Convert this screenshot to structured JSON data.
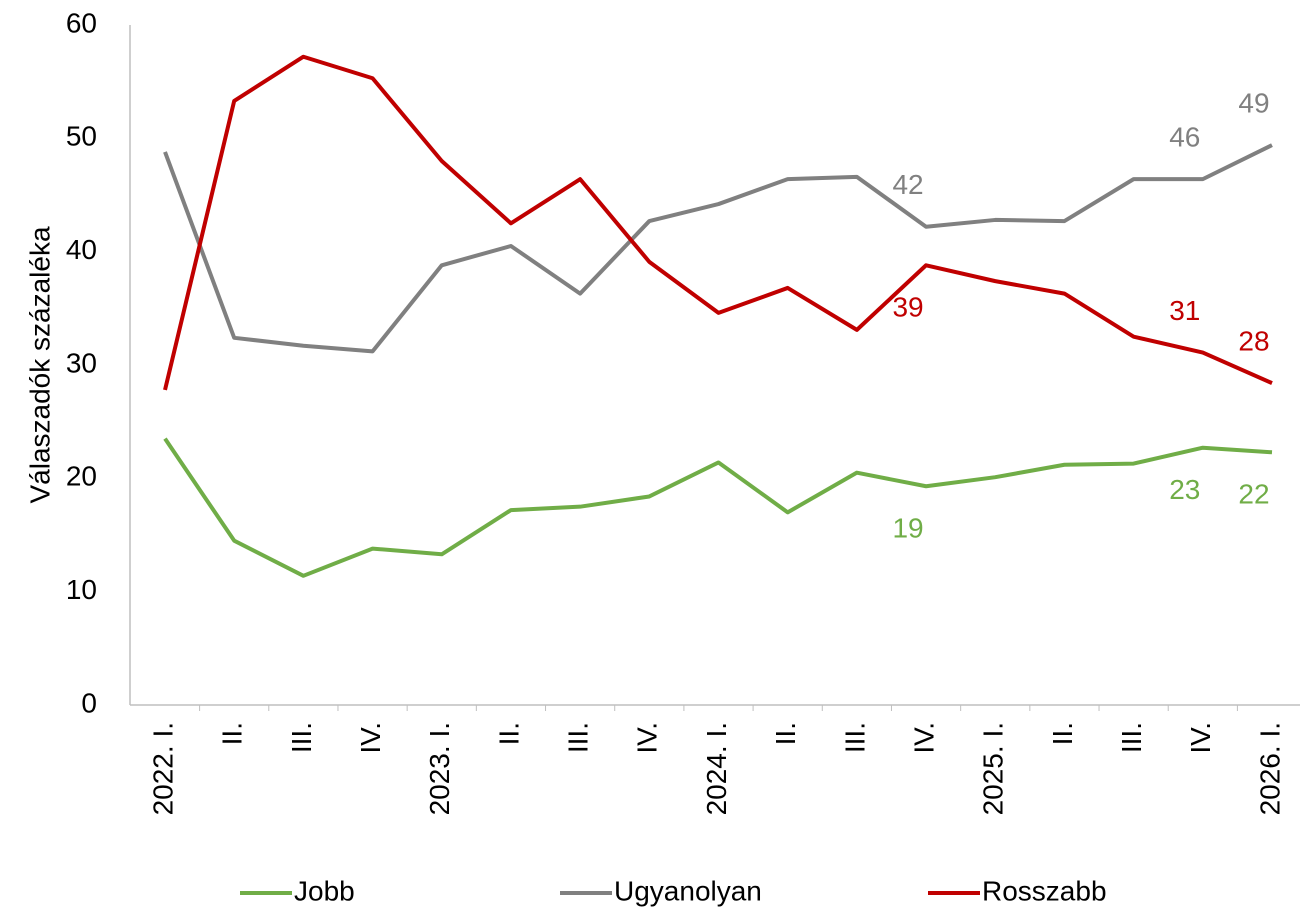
{
  "chart_data": {
    "type": "line",
    "y_label": "Válaszadók százaléka",
    "categories": [
      "2022. I.",
      "II.",
      "III.",
      "IV.",
      "2023. I.",
      "II.",
      "III.",
      "IV.",
      "2024. I.",
      "II.",
      "III.",
      "IV.",
      "2025. I.",
      "II.",
      "III.",
      "IV.",
      "2026. I."
    ],
    "series": [
      {
        "name": "Jobb",
        "color": "#70ad47",
        "values": [
          23.5,
          14.5,
          11.4,
          13.8,
          13.3,
          17.2,
          17.5,
          18.4,
          21.4,
          17.0,
          20.5,
          19.3,
          20.1,
          21.2,
          21.3,
          22.7,
          22.3
        ],
        "value_labels": [
          null,
          null,
          null,
          null,
          null,
          null,
          null,
          null,
          null,
          null,
          null,
          "19",
          null,
          null,
          null,
          "23",
          "22"
        ]
      },
      {
        "name": "Ugyanolyan",
        "color": "#808080",
        "values": [
          48.8,
          32.4,
          31.7,
          31.2,
          38.8,
          40.5,
          36.3,
          42.7,
          44.2,
          46.4,
          46.6,
          42.2,
          42.8,
          42.7,
          46.4,
          46.4,
          49.4
        ],
        "value_labels": [
          null,
          null,
          null,
          null,
          null,
          null,
          null,
          null,
          null,
          null,
          null,
          "42",
          null,
          null,
          null,
          "46",
          "49"
        ]
      },
      {
        "name": "Rosszabb",
        "color": "#c00000",
        "values": [
          27.8,
          53.3,
          57.2,
          55.3,
          48.0,
          42.5,
          46.4,
          39.1,
          34.6,
          36.8,
          33.1,
          38.8,
          37.4,
          36.3,
          32.5,
          31.1,
          28.4
        ],
        "value_labels": [
          null,
          null,
          null,
          null,
          null,
          null,
          null,
          null,
          null,
          null,
          null,
          "39",
          null,
          null,
          null,
          "31",
          "28"
        ]
      }
    ],
    "ylim": [
      0,
      60
    ],
    "yticks": [
      0,
      10,
      20,
      30,
      40,
      50,
      60
    ],
    "grid": false,
    "legend": "bottom"
  }
}
